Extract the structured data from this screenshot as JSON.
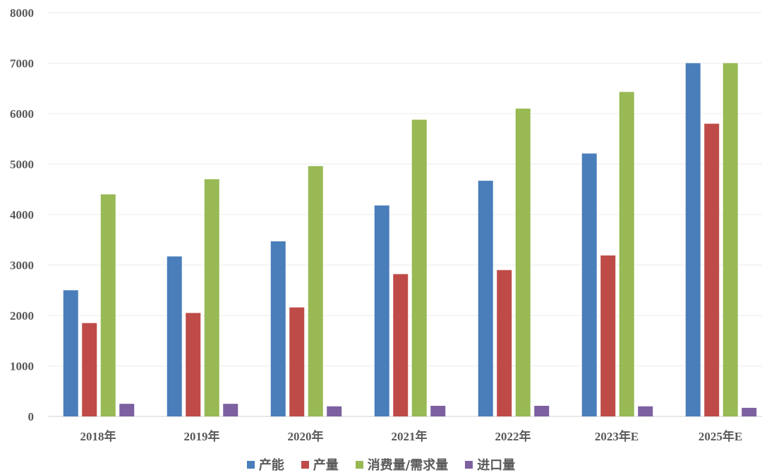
{
  "chart_data": {
    "type": "bar",
    "title": "",
    "xlabel": "",
    "ylabel": "",
    "ylim": [
      0,
      8000
    ],
    "yticks": [
      0,
      1000,
      2000,
      3000,
      4000,
      5000,
      6000,
      7000,
      8000
    ],
    "grid": true,
    "legend_position": "bottom",
    "categories": [
      "2018年",
      "2019年",
      "2020年",
      "2021年",
      "2022年",
      "2023年E",
      "2025年E"
    ],
    "series": [
      {
        "name": "产能",
        "color": "#4a7ebb",
        "values": [
          2500,
          3170,
          3470,
          4180,
          4670,
          5210,
          7000
        ]
      },
      {
        "name": "产量",
        "color": "#be4b48",
        "values": [
          1850,
          2050,
          2160,
          2820,
          2900,
          3190,
          5800
        ]
      },
      {
        "name": "消费量/需求量",
        "color": "#98b954",
        "values": [
          4400,
          4700,
          4960,
          5880,
          6100,
          6430,
          7000
        ]
      },
      {
        "name": "进口量",
        "color": "#7d60a0",
        "values": [
          250,
          250,
          200,
          210,
          210,
          200,
          170
        ]
      }
    ]
  }
}
